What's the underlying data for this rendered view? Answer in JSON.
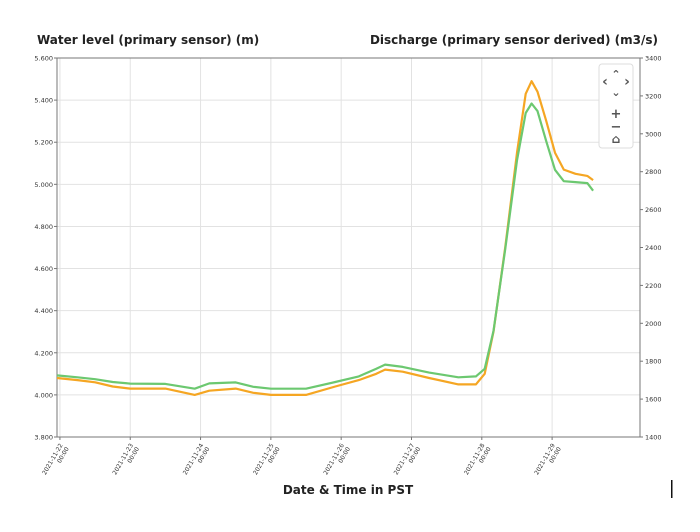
{
  "chart_data": {
    "type": "line",
    "title": "",
    "y_left_label": "Water level (primary sensor) (m)",
    "y_right_label": "Discharge (primary sensor derived) (m3/s)",
    "xlabel": "Date & Time in PST",
    "x_ticks": [
      "2021-11-22 00:00",
      "2021-11-23 00:00",
      "2021-11-24 00:00",
      "2021-11-25 00:00",
      "2021-11-26 00:00",
      "2021-11-27 00:00",
      "2021-11-28 00:00",
      "2021-11-29 00:00"
    ],
    "y_left_ticks": [
      "3.800",
      "4.000",
      "4.200",
      "4.400",
      "4.600",
      "4.800",
      "5.000",
      "5.200",
      "5.400",
      "5.600"
    ],
    "y_right_ticks": [
      "1400",
      "1600",
      "1800",
      "2000",
      "2200",
      "2400",
      "2600",
      "2800",
      "3000",
      "3200",
      "3400"
    ],
    "ylim_left": [
      3.8,
      5.6
    ],
    "ylim_right": [
      1400,
      3400
    ],
    "xlim": [
      "2021-11-21 23:00",
      "2021-11-30 06:00"
    ],
    "grid": true,
    "series": [
      {
        "axis": "left",
        "color": "#f5a623",
        "points": [
          [
            "2021-11-21 23:00",
            4.08
          ],
          [
            "2021-11-22 06:00",
            4.07
          ],
          [
            "2021-11-22 12:00",
            4.06
          ],
          [
            "2021-11-22 18:00",
            4.04
          ],
          [
            "2021-11-23 00:00",
            4.03
          ],
          [
            "2021-11-23 12:00",
            4.03
          ],
          [
            "2021-11-23 22:00",
            4.0
          ],
          [
            "2021-11-24 03:00",
            4.02
          ],
          [
            "2021-11-24 12:00",
            4.03
          ],
          [
            "2021-11-24 18:00",
            4.01
          ],
          [
            "2021-11-25 00:00",
            4.0
          ],
          [
            "2021-11-25 12:00",
            4.0
          ],
          [
            "2021-11-25 22:00",
            4.04
          ],
          [
            "2021-11-26 06:00",
            4.07
          ],
          [
            "2021-11-26 12:00",
            4.1
          ],
          [
            "2021-11-26 15:00",
            4.12
          ],
          [
            "2021-11-26 21:00",
            4.11
          ],
          [
            "2021-11-27 06:00",
            4.08
          ],
          [
            "2021-11-27 16:00",
            4.05
          ],
          [
            "2021-11-27 22:00",
            4.05
          ],
          [
            "2021-11-28 01:00",
            4.1
          ],
          [
            "2021-11-28 04:00",
            4.3
          ],
          [
            "2021-11-28 08:00",
            4.7
          ],
          [
            "2021-11-28 12:00",
            5.15
          ],
          [
            "2021-11-28 15:00",
            5.43
          ],
          [
            "2021-11-28 17:00",
            5.49
          ],
          [
            "2021-11-28 19:00",
            5.44
          ],
          [
            "2021-11-28 22:00",
            5.3
          ],
          [
            "2021-11-29 01:00",
            5.15
          ],
          [
            "2021-11-29 04:00",
            5.07
          ],
          [
            "2021-11-29 08:00",
            5.05
          ],
          [
            "2021-11-29 12:00",
            5.04
          ],
          [
            "2021-11-29 14:00",
            5.02
          ]
        ]
      },
      {
        "axis": "right",
        "color": "#6cc870",
        "points": [
          [
            "2021-11-21 23:00",
            1725
          ],
          [
            "2021-11-22 06:00",
            1715
          ],
          [
            "2021-11-22 12:00",
            1705
          ],
          [
            "2021-11-22 18:00",
            1690
          ],
          [
            "2021-11-23 00:00",
            1682
          ],
          [
            "2021-11-23 12:00",
            1680
          ],
          [
            "2021-11-23 22:00",
            1655
          ],
          [
            "2021-11-24 03:00",
            1683
          ],
          [
            "2021-11-24 12:00",
            1688
          ],
          [
            "2021-11-24 18:00",
            1665
          ],
          [
            "2021-11-25 00:00",
            1655
          ],
          [
            "2021-11-25 12:00",
            1655
          ],
          [
            "2021-11-25 22:00",
            1690
          ],
          [
            "2021-11-26 06:00",
            1720
          ],
          [
            "2021-11-26 12:00",
            1760
          ],
          [
            "2021-11-26 15:00",
            1782
          ],
          [
            "2021-11-26 21:00",
            1770
          ],
          [
            "2021-11-27 06:00",
            1740
          ],
          [
            "2021-11-27 16:00",
            1715
          ],
          [
            "2021-11-27 22:00",
            1720
          ],
          [
            "2021-11-28 01:00",
            1760
          ],
          [
            "2021-11-28 04:00",
            1960
          ],
          [
            "2021-11-28 08:00",
            2390
          ],
          [
            "2021-11-28 12:00",
            2860
          ],
          [
            "2021-11-28 15:00",
            3110
          ],
          [
            "2021-11-28 17:00",
            3160
          ],
          [
            "2021-11-28 19:00",
            3120
          ],
          [
            "2021-11-28 22:00",
            2960
          ],
          [
            "2021-11-29 01:00",
            2810
          ],
          [
            "2021-11-29 04:00",
            2750
          ],
          [
            "2021-11-29 08:00",
            2745
          ],
          [
            "2021-11-29 12:00",
            2740
          ],
          [
            "2021-11-29 14:00",
            2700
          ]
        ]
      }
    ]
  },
  "nav": {
    "up": "⌃",
    "left": "‹",
    "right": "›",
    "down": "⌄",
    "zoom_in": "+",
    "zoom_out": "−",
    "home": "⌂"
  }
}
